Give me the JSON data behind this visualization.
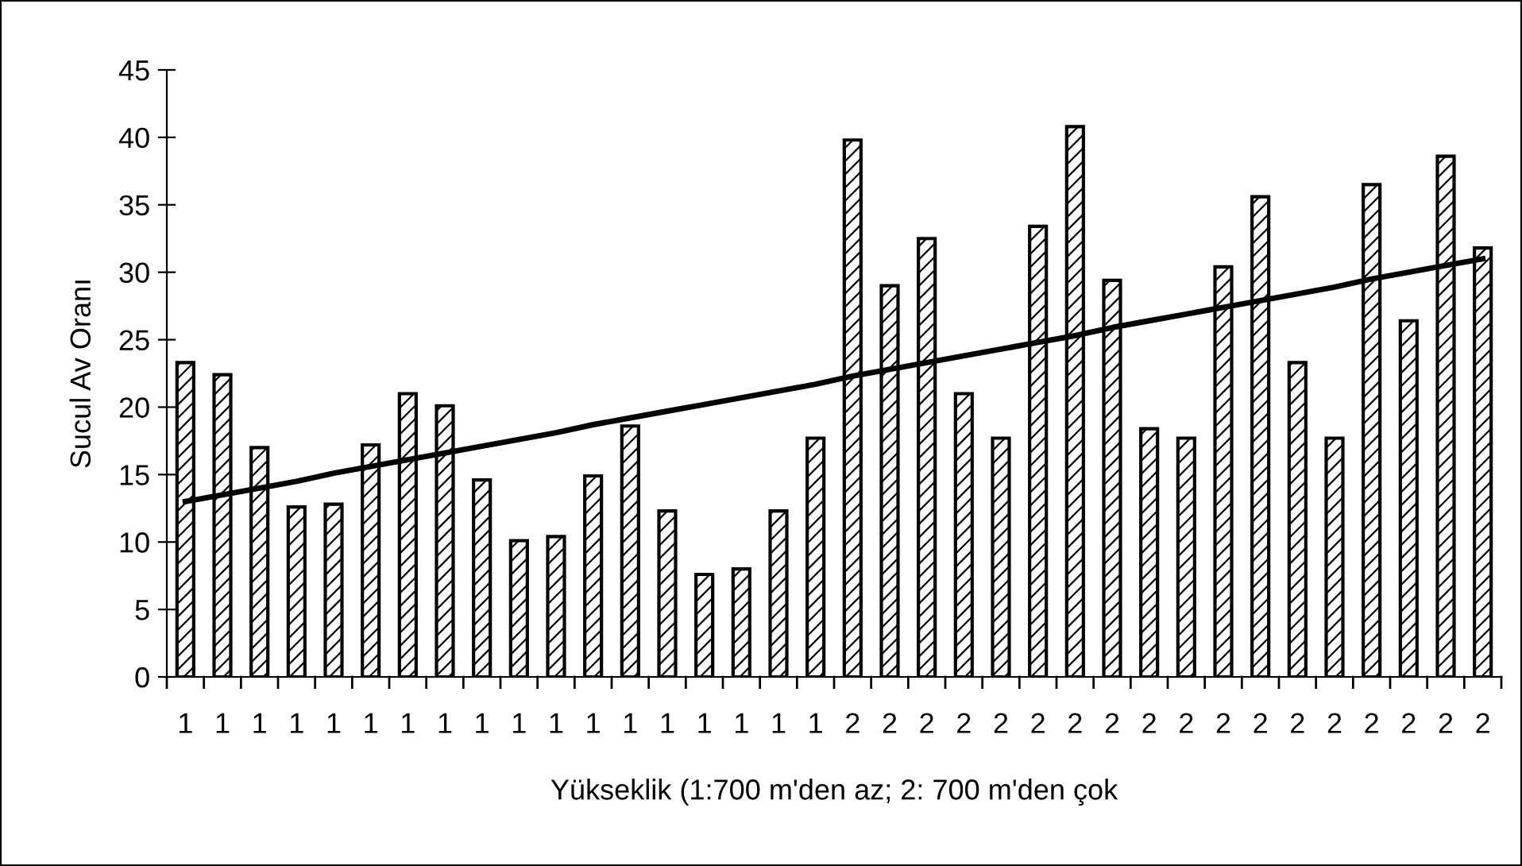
{
  "chart_data": {
    "type": "bar",
    "xlabel": "Yükseklik (1:700 m'den az; 2: 700 m'den çok",
    "ylabel": "Sucul Av Oranı",
    "categories": [
      "1",
      "1",
      "1",
      "1",
      "1",
      "1",
      "1",
      "1",
      "1",
      "1",
      "1",
      "1",
      "1",
      "1",
      "1",
      "1",
      "1",
      "1",
      "2",
      "2",
      "2",
      "2",
      "2",
      "2",
      "2",
      "2",
      "2",
      "2",
      "2",
      "2",
      "2",
      "2",
      "2",
      "2",
      "2",
      "2"
    ],
    "series": [
      {
        "values": [
          23.3,
          22.4,
          17.0,
          12.6,
          12.8,
          17.2,
          21.0,
          20.1,
          14.6,
          10.1,
          10.4,
          14.9,
          18.6,
          12.3,
          7.6,
          8.0,
          12.3,
          17.7,
          39.8,
          29.0,
          32.5,
          21.0,
          17.7,
          33.4,
          40.8,
          29.4,
          18.4,
          17.7,
          30.4,
          35.6,
          23.3,
          17.7,
          36.5,
          26.4,
          38.6,
          31.8
        ]
      },
      {
        "type": "line",
        "color": "#000000",
        "values": [
          13.0,
          13.5,
          14.0,
          14.5,
          15.1,
          15.6,
          16.1,
          16.6,
          17.1,
          17.6,
          18.1,
          18.7,
          19.2,
          19.7,
          20.2,
          20.7,
          21.2,
          21.7,
          22.3,
          22.8,
          23.3,
          23.8,
          24.3,
          24.8,
          25.3,
          25.9,
          26.4,
          26.9,
          27.4,
          27.9,
          28.4,
          28.9,
          29.5,
          30.0,
          30.5,
          31.0
        ]
      }
    ],
    "ylim": [
      0,
      45
    ],
    "yticks": [
      0,
      5,
      10,
      15,
      20,
      25,
      30,
      35,
      40,
      45
    ],
    "grid": false,
    "legend": false,
    "line_style": "solid",
    "marker": "none"
  }
}
